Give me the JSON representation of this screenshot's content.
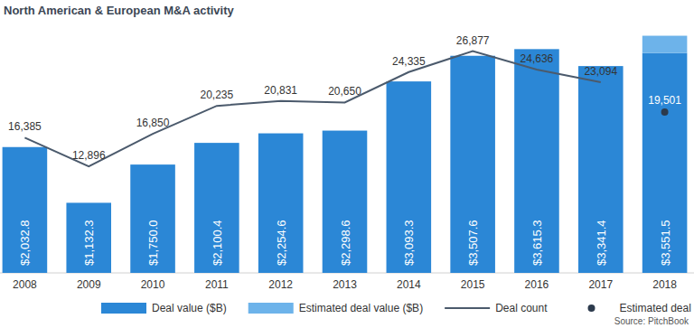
{
  "chart_data": {
    "type": "bar",
    "title": "North American & European M&A activity",
    "source": "Source: PitchBook",
    "categories": [
      "2008",
      "2009",
      "2010",
      "2011",
      "2012",
      "2013",
      "2014",
      "2015",
      "2016",
      "2017",
      "2018"
    ],
    "stacked": true,
    "legend": "bottom",
    "tick_labels": "x",
    "grid": false,
    "ylim": [
      0,
      4000
    ],
    "y2lim": [
      0,
      30000
    ],
    "series": [
      {
        "name": "Deal value ($B)",
        "type": "bar",
        "color": "#2b87d6",
        "values": [
          2032.8,
          1132.3,
          1750.0,
          2100.4,
          2254.6,
          2298.6,
          3093.3,
          3507.6,
          3615.3,
          3341.4,
          3551.5
        ],
        "value_labels": [
          "$2,032.8",
          "$1,132.3",
          "$1,750.0",
          "$2,100.4",
          "$2,254.6",
          "$2,298.6",
          "$3,093.3",
          "$3,507.6",
          "$3,615.3",
          "$3,341.4",
          "$3,551.5"
        ],
        "data_labels": true
      },
      {
        "name": "Estimated deal value ($B)",
        "type": "bar",
        "color": "#6db3ea",
        "values": [
          null,
          null,
          null,
          null,
          null,
          null,
          null,
          null,
          null,
          null,
          280
        ]
      },
      {
        "name": "Deal count",
        "type": "line",
        "color": "#4b5a6c",
        "axis": "y2",
        "values": [
          16385,
          12896,
          16850,
          20235,
          20831,
          20650,
          24335,
          26877,
          24636,
          23094,
          null
        ],
        "value_labels": [
          "16,385",
          "12,896",
          "16,850",
          "20,235",
          "20,831",
          "20,650",
          "24,335",
          "26,877",
          "24,636",
          "23,094",
          null
        ],
        "data_labels": true
      },
      {
        "name": "Estimated deal count",
        "type": "scatter",
        "marker": "circle",
        "color": "#2c3a4c",
        "axis": "y2",
        "values": [
          null,
          null,
          null,
          null,
          null,
          null,
          null,
          null,
          null,
          null,
          19501
        ],
        "value_labels": [
          null,
          null,
          null,
          null,
          null,
          null,
          null,
          null,
          null,
          null,
          "19,501"
        ],
        "data_labels": true
      }
    ]
  }
}
